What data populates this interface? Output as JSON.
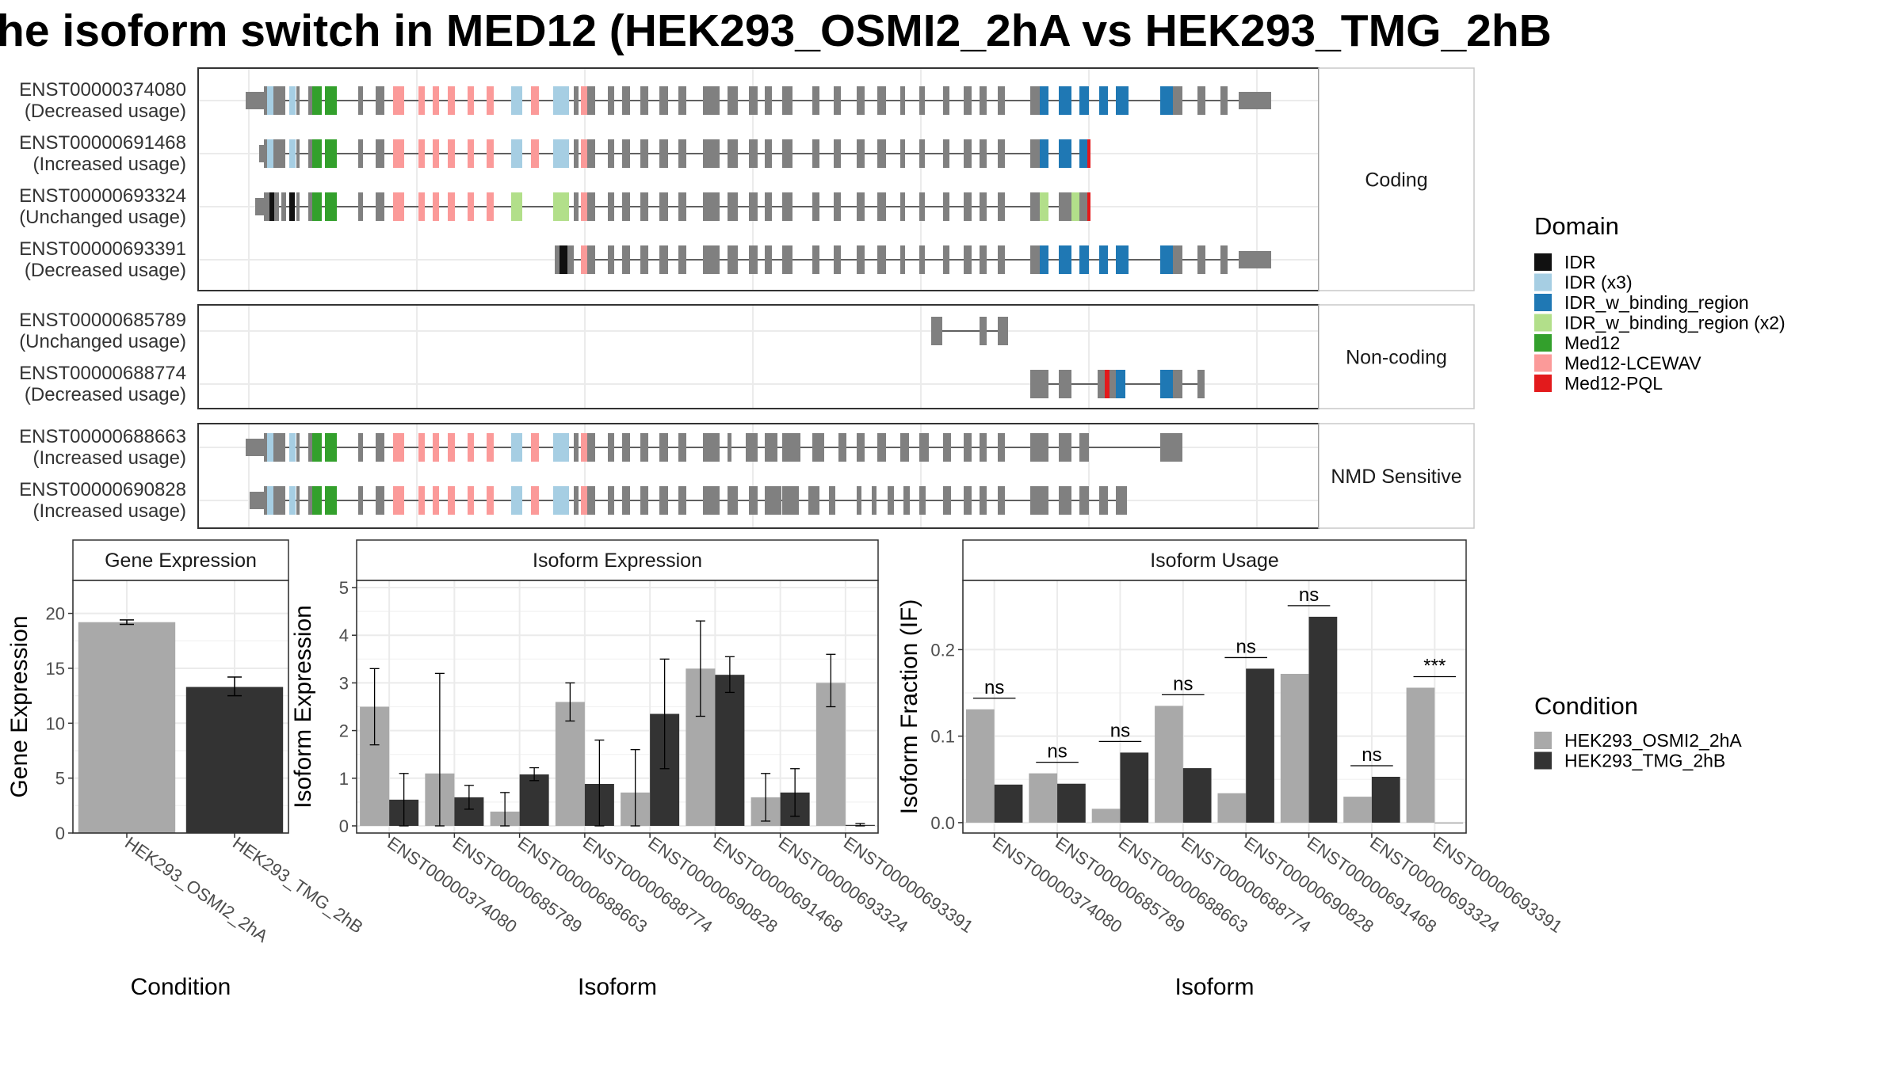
{
  "title": "he isoform switch in MED12 (HEK293_OSMI2_2hA vs HEK293_TMG_2hB",
  "colors": {
    "exon_default": "#808080",
    "IDR": "#111111",
    "IDR (x3)": "#a6cee3",
    "IDR_w_binding_region": "#1f78b4",
    "IDR_w_binding_region (x2)": "#b2df8a",
    "Med12": "#33a02c",
    "Med12-LCEWAV": "#fb9a99",
    "Med12-PQL": "#e31a1c",
    "condA": "#a9a9a9",
    "condB": "#333333"
  },
  "structure": {
    "panels": [
      {
        "label": "Coding",
        "transcripts": [
          {
            "id": "ENST00000374080",
            "usage": "(Decreased usage)"
          },
          {
            "id": "ENST00000691468",
            "usage": "(Increased usage)"
          },
          {
            "id": "ENST00000693324",
            "usage": "(Unchanged usage)"
          },
          {
            "id": "ENST00000693391",
            "usage": "(Decreased usage)"
          }
        ]
      },
      {
        "label": "Non-coding",
        "transcripts": [
          {
            "id": "ENST00000685789",
            "usage": "(Unchanged usage)"
          },
          {
            "id": "ENST00000688774",
            "usage": "(Decreased usage)"
          }
        ]
      },
      {
        "label": "NMD Sensitive",
        "transcripts": [
          {
            "id": "ENST00000688663",
            "usage": "(Increased usage)"
          },
          {
            "id": "ENST00000690828",
            "usage": "(Increased usage)"
          }
        ]
      }
    ]
  },
  "legend_domain": {
    "title": "Domain",
    "items": [
      "IDR",
      "IDR (x3)",
      "IDR_w_binding_region",
      "IDR_w_binding_region (x2)",
      "Med12",
      "Med12-LCEWAV",
      "Med12-PQL"
    ]
  },
  "legend_condition": {
    "title": "Condition",
    "items": [
      "HEK293_OSMI2_2hA",
      "HEK293_TMG_2hB"
    ]
  },
  "chart_data": [
    {
      "type": "bar",
      "title": "Gene Expression",
      "xlabel": "Condition",
      "ylabel": "Gene Expression",
      "categories": [
        "HEK293_OSMI2_2hA",
        "HEK293_TMG_2hB"
      ],
      "values": [
        19.2,
        13.3
      ],
      "errors": [
        [
          19.0,
          19.4
        ],
        [
          12.5,
          14.2
        ]
      ],
      "ylim": [
        0,
        23
      ],
      "yticks": [
        0,
        5,
        10,
        15,
        20
      ]
    },
    {
      "type": "bar",
      "title": "Isoform Expression",
      "xlabel": "Isoform",
      "ylabel": "Isoform Expression",
      "categories": [
        "ENST00000374080",
        "ENST00000685789",
        "ENST00000688663",
        "ENST00000688774",
        "ENST00000690828",
        "ENST00000691468",
        "ENST00000693324",
        "ENST00000693391"
      ],
      "series": [
        {
          "name": "HEK293_OSMI2_2hA",
          "values": [
            2.5,
            1.1,
            0.3,
            2.6,
            0.7,
            3.3,
            0.6,
            3.0
          ],
          "errors": [
            [
              1.7,
              3.3
            ],
            [
              0.0,
              3.2
            ],
            [
              0.0,
              0.7
            ],
            [
              2.2,
              3.0
            ],
            [
              0.0,
              1.6
            ],
            [
              2.3,
              4.3
            ],
            [
              0.1,
              1.1
            ],
            [
              2.5,
              3.6
            ]
          ]
        },
        {
          "name": "HEK293_TMG_2hB",
          "values": [
            0.55,
            0.6,
            1.08,
            0.88,
            2.35,
            3.17,
            0.7,
            0.02
          ],
          "errors": [
            [
              0.0,
              1.1
            ],
            [
              0.35,
              0.85
            ],
            [
              0.95,
              1.22
            ],
            [
              0.0,
              1.8
            ],
            [
              1.2,
              3.5
            ],
            [
              2.8,
              3.55
            ],
            [
              0.2,
              1.2
            ],
            [
              0.0,
              0.05
            ]
          ]
        }
      ],
      "ylim": [
        -0.15,
        5.15
      ],
      "yticks": [
        0,
        1,
        2,
        3,
        4,
        5
      ]
    },
    {
      "type": "bar",
      "title": "Isoform Usage",
      "xlabel": "Isoform",
      "ylabel": "Isoform Fraction (IF)",
      "categories": [
        "ENST00000374080",
        "ENST00000685789",
        "ENST00000688663",
        "ENST00000688774",
        "ENST00000690828",
        "ENST00000691468",
        "ENST00000693324",
        "ENST00000693391"
      ],
      "series": [
        {
          "name": "HEK293_OSMI2_2hA",
          "values": [
            0.131,
            0.057,
            0.016,
            0.135,
            0.034,
            0.172,
            0.03,
            0.156
          ]
        },
        {
          "name": "HEK293_TMG_2hB",
          "values": [
            0.044,
            0.045,
            0.081,
            0.063,
            0.178,
            0.238,
            0.053,
            0.0
          ]
        }
      ],
      "significance": [
        "ns",
        "ns",
        "ns",
        "ns",
        "ns",
        "ns",
        "ns",
        "***"
      ],
      "ylim": [
        -0.012,
        0.28
      ],
      "yticks": [
        0.0,
        0.1,
        0.2
      ],
      "ytick_labels": [
        "0.0",
        "0.1",
        "0.2"
      ]
    }
  ]
}
